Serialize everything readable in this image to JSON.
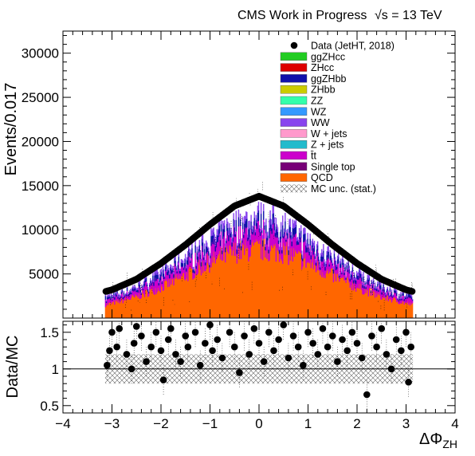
{
  "header": {
    "left": "CMS Work in Progress",
    "right": "√s = 13 TeV"
  },
  "chart_data": [
    {
      "type": "bar",
      "stacked": true,
      "title": "",
      "xlabel": "",
      "ylabel": "Events/0.017",
      "xlim": [
        -4,
        4
      ],
      "ylim": [
        0,
        32500
      ],
      "x_ticks": [
        -4,
        -3,
        -2,
        -1,
        0,
        1,
        2,
        3,
        4
      ],
      "y_ticks": [
        5000,
        10000,
        15000,
        20000,
        25000,
        30000
      ],
      "y_tick_labels": [
        "5000",
        "10000",
        "15000",
        "20000",
        "25000",
        "30000"
      ],
      "data_curve": {
        "x": [
          -3.14,
          -3.0,
          -2.5,
          -2.0,
          -1.5,
          -1.0,
          -0.5,
          0.0,
          0.5,
          1.0,
          1.5,
          2.0,
          2.5,
          3.0,
          3.14
        ],
        "y": [
          3000,
          3200,
          4400,
          6200,
          8300,
          10600,
          12700,
          13800,
          12700,
          10600,
          8300,
          6200,
          4400,
          3200,
          3000
        ]
      },
      "qcd_curve": {
        "x": [
          -3.14,
          -3.0,
          -2.5,
          -2.0,
          -1.5,
          -1.0,
          -0.5,
          0.0,
          0.5,
          1.0,
          1.5,
          2.0,
          2.5,
          3.0,
          3.14
        ],
        "y": [
          1500,
          1700,
          2400,
          3500,
          4800,
          6300,
          7500,
          7800,
          7500,
          6300,
          4800,
          3500,
          2400,
          1700,
          1500
        ]
      },
      "legend_position": "top-right",
      "legend": [
        {
          "label": "Data (JetHT, 2018)",
          "style": "marker",
          "color": "#000000"
        },
        {
          "label": "ggZHcc",
          "style": "box",
          "color": "#22cc22"
        },
        {
          "label": "ZHcc",
          "style": "box",
          "color": "#dd0000"
        },
        {
          "label": "ggZHbb",
          "style": "box",
          "color": "#1010aa"
        },
        {
          "label": "ZHbb",
          "style": "box",
          "color": "#cccc00"
        },
        {
          "label": "ZZ",
          "style": "box",
          "color": "#33ffaa"
        },
        {
          "label": "WZ",
          "style": "box",
          "color": "#3399ff"
        },
        {
          "label": "WW",
          "style": "box",
          "color": "#8844ee"
        },
        {
          "label": "W + jets",
          "style": "box",
          "color": "#ff99cc"
        },
        {
          "label": "Z + jets",
          "style": "box",
          "color": "#22bbcc"
        },
        {
          "label": "t̄t",
          "style": "box",
          "color": "#cc00cc"
        },
        {
          "label": "Single top",
          "style": "box",
          "color": "#770077"
        },
        {
          "label": "QCD",
          "style": "box",
          "color": "#ff6600"
        },
        {
          "label": "MC unc. (stat.)",
          "style": "hatch",
          "color": "#555555"
        }
      ]
    },
    {
      "type": "scatter",
      "title": "",
      "xlabel": "ΔΦ",
      "xlabel_sub": "ZH",
      "ylabel": "Data/MC",
      "xlim": [
        -4,
        4
      ],
      "ylim": [
        0.4,
        1.65
      ],
      "reference_line": 1,
      "x_ticks": [
        -4,
        -3,
        -2,
        -1,
        0,
        1,
        2,
        3,
        4
      ],
      "x_tick_labels": [
        "−4",
        "−3",
        "−2",
        "−1",
        "0",
        "1",
        "2",
        "3",
        "4"
      ],
      "y_ticks": [
        0.5,
        1,
        1.5
      ],
      "y_tick_labels": [
        "0.5",
        "1",
        "1.5"
      ],
      "ratio_band": [
        0.8,
        1.2
      ],
      "points": {
        "x": [
          -3.1,
          -3.05,
          -3.0,
          -2.9,
          -2.85,
          -2.7,
          -2.6,
          -2.55,
          -2.5,
          -2.4,
          -2.3,
          -2.2,
          -2.1,
          -2.0,
          -1.95,
          -1.85,
          -1.8,
          -1.7,
          -1.6,
          -1.5,
          -1.45,
          -1.3,
          -1.2,
          -1.1,
          -1.0,
          -0.95,
          -0.85,
          -0.75,
          -0.6,
          -0.5,
          -0.4,
          -0.3,
          -0.2,
          -0.1,
          0.0,
          0.1,
          0.2,
          0.3,
          0.4,
          0.5,
          0.6,
          0.7,
          0.8,
          0.9,
          1.0,
          1.1,
          1.2,
          1.3,
          1.4,
          1.5,
          1.6,
          1.7,
          1.8,
          1.9,
          2.0,
          2.1,
          2.2,
          2.3,
          2.4,
          2.5,
          2.6,
          2.7,
          2.8,
          2.9,
          3.0,
          3.05,
          3.1
        ],
        "y": [
          1.05,
          1.25,
          1.5,
          1.3,
          1.55,
          1.2,
          1.0,
          1.35,
          1.58,
          1.45,
          1.1,
          1.3,
          1.5,
          1.25,
          0.85,
          1.4,
          1.55,
          1.2,
          1.1,
          1.45,
          1.3,
          1.5,
          1.05,
          1.35,
          1.6,
          1.25,
          1.4,
          1.15,
          1.5,
          1.3,
          0.95,
          1.45,
          1.2,
          1.55,
          1.35,
          1.1,
          1.5,
          1.25,
          1.4,
          1.6,
          1.15,
          1.45,
          1.3,
          1.05,
          1.5,
          1.35,
          1.2,
          1.55,
          1.3,
          1.45,
          1.1,
          1.4,
          1.25,
          1.5,
          1.35,
          1.15,
          0.65,
          1.45,
          1.3,
          1.55,
          1.2,
          1.0,
          1.4,
          1.25,
          1.5,
          0.82,
          1.3
        ]
      }
    }
  ]
}
